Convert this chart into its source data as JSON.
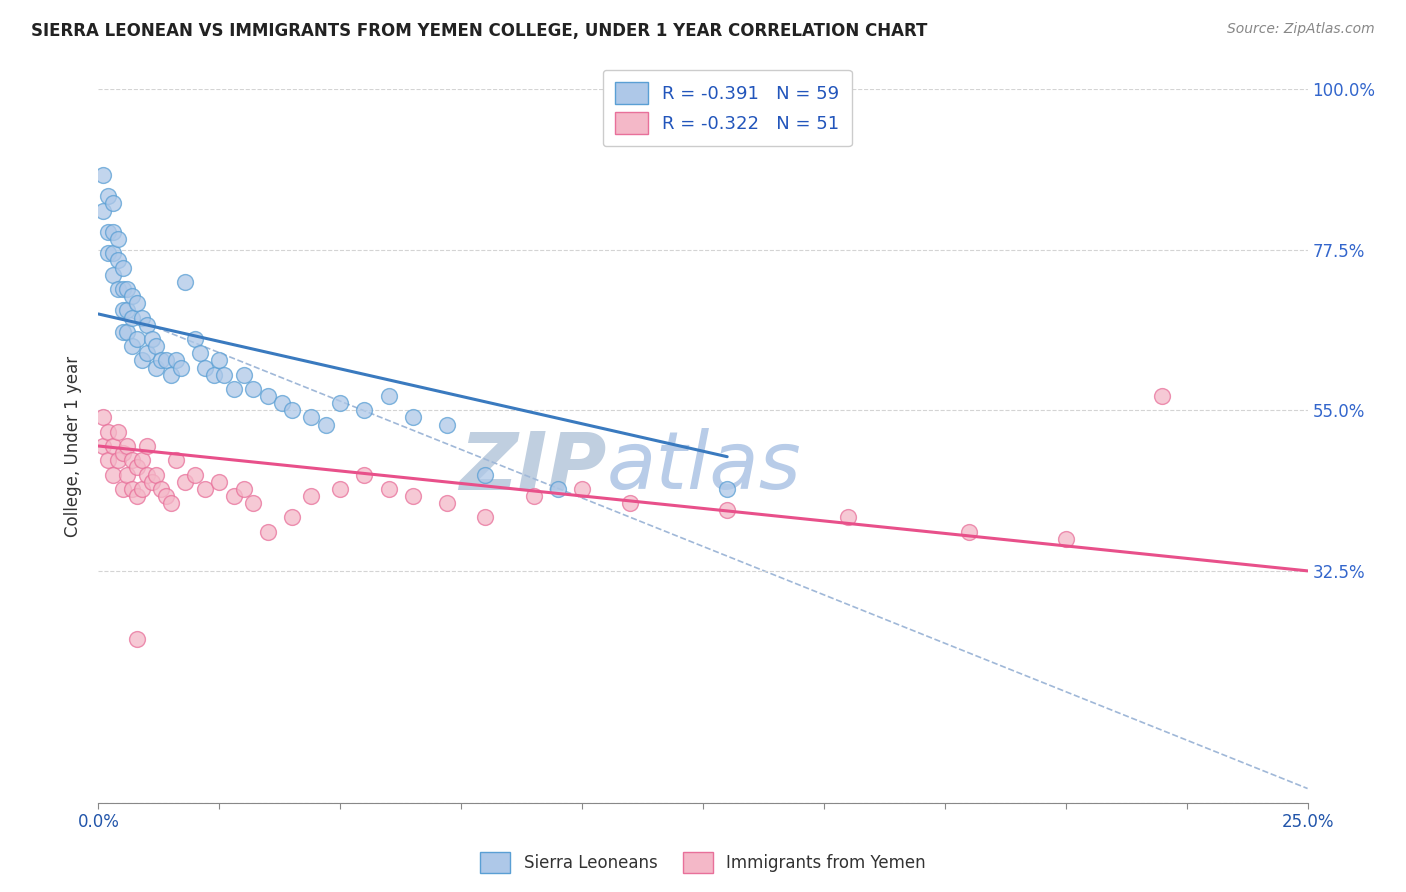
{
  "title": "SIERRA LEONEAN VS IMMIGRANTS FROM YEMEN COLLEGE, UNDER 1 YEAR CORRELATION CHART",
  "source": "Source: ZipAtlas.com",
  "ylabel": "College, Under 1 year",
  "x_ticks": [
    0.0,
    0.025,
    0.05,
    0.075,
    0.1,
    0.125,
    0.15,
    0.175,
    0.2,
    0.225,
    0.25
  ],
  "x_tick_labels": [
    "0.0%",
    "",
    "",
    "",
    "",
    "",
    "",
    "",
    "",
    "",
    "25.0%"
  ],
  "y_ticks": [
    0.0,
    0.325,
    0.55,
    0.775,
    1.0
  ],
  "y_tick_labels_right": [
    "",
    "32.5%",
    "55.0%",
    "77.5%",
    "100.0%"
  ],
  "xlim": [
    0.0,
    0.25
  ],
  "ylim": [
    0.0,
    1.0
  ],
  "blue_R": -0.391,
  "blue_N": 59,
  "pink_R": -0.322,
  "pink_N": 51,
  "blue_line_x": [
    0.0,
    0.13
  ],
  "blue_line_y": [
    0.685,
    0.485
  ],
  "pink_line_x": [
    0.0,
    0.25
  ],
  "pink_line_y": [
    0.5,
    0.325
  ],
  "dashed_line_x": [
    0.005,
    0.25
  ],
  "dashed_line_y": [
    0.685,
    0.02
  ],
  "blue_scatter_x": [
    0.001,
    0.001,
    0.002,
    0.002,
    0.002,
    0.003,
    0.003,
    0.003,
    0.003,
    0.004,
    0.004,
    0.004,
    0.005,
    0.005,
    0.005,
    0.005,
    0.006,
    0.006,
    0.006,
    0.007,
    0.007,
    0.007,
    0.008,
    0.008,
    0.009,
    0.009,
    0.01,
    0.01,
    0.011,
    0.012,
    0.012,
    0.013,
    0.014,
    0.015,
    0.016,
    0.017,
    0.018,
    0.02,
    0.021,
    0.022,
    0.024,
    0.025,
    0.026,
    0.028,
    0.03,
    0.032,
    0.035,
    0.038,
    0.04,
    0.044,
    0.047,
    0.05,
    0.055,
    0.06,
    0.065,
    0.072,
    0.08,
    0.095,
    0.13
  ],
  "blue_scatter_y": [
    0.88,
    0.83,
    0.85,
    0.8,
    0.77,
    0.84,
    0.8,
    0.77,
    0.74,
    0.79,
    0.76,
    0.72,
    0.75,
    0.72,
    0.69,
    0.66,
    0.72,
    0.69,
    0.66,
    0.71,
    0.68,
    0.64,
    0.7,
    0.65,
    0.68,
    0.62,
    0.67,
    0.63,
    0.65,
    0.64,
    0.61,
    0.62,
    0.62,
    0.6,
    0.62,
    0.61,
    0.73,
    0.65,
    0.63,
    0.61,
    0.6,
    0.62,
    0.6,
    0.58,
    0.6,
    0.58,
    0.57,
    0.56,
    0.55,
    0.54,
    0.53,
    0.56,
    0.55,
    0.57,
    0.54,
    0.53,
    0.46,
    0.44,
    0.44
  ],
  "pink_scatter_x": [
    0.001,
    0.001,
    0.002,
    0.002,
    0.003,
    0.003,
    0.004,
    0.004,
    0.005,
    0.005,
    0.006,
    0.006,
    0.007,
    0.007,
    0.008,
    0.008,
    0.009,
    0.009,
    0.01,
    0.01,
    0.011,
    0.012,
    0.013,
    0.014,
    0.015,
    0.016,
    0.018,
    0.02,
    0.022,
    0.025,
    0.028,
    0.03,
    0.032,
    0.035,
    0.04,
    0.044,
    0.05,
    0.055,
    0.06,
    0.065,
    0.072,
    0.08,
    0.09,
    0.1,
    0.11,
    0.13,
    0.155,
    0.18,
    0.2,
    0.22,
    0.008
  ],
  "pink_scatter_y": [
    0.54,
    0.5,
    0.52,
    0.48,
    0.5,
    0.46,
    0.52,
    0.48,
    0.49,
    0.44,
    0.5,
    0.46,
    0.48,
    0.44,
    0.47,
    0.43,
    0.48,
    0.44,
    0.5,
    0.46,
    0.45,
    0.46,
    0.44,
    0.43,
    0.42,
    0.48,
    0.45,
    0.46,
    0.44,
    0.45,
    0.43,
    0.44,
    0.42,
    0.38,
    0.4,
    0.43,
    0.44,
    0.46,
    0.44,
    0.43,
    0.42,
    0.4,
    0.43,
    0.44,
    0.42,
    0.41,
    0.4,
    0.38,
    0.37,
    0.57,
    0.23
  ],
  "blue_color": "#aec8e8",
  "blue_edge_color": "#5a9fd4",
  "pink_color": "#f4b8c8",
  "pink_edge_color": "#e8709a",
  "blue_line_color": "#3a7abf",
  "pink_line_color": "#e8508a",
  "dashed_line_color": "#a0b8d8",
  "watermark_zip_color": "#c0cfe0",
  "watermark_atlas_color": "#b8cce8",
  "background_color": "#ffffff",
  "grid_color": "#d0d0d0"
}
